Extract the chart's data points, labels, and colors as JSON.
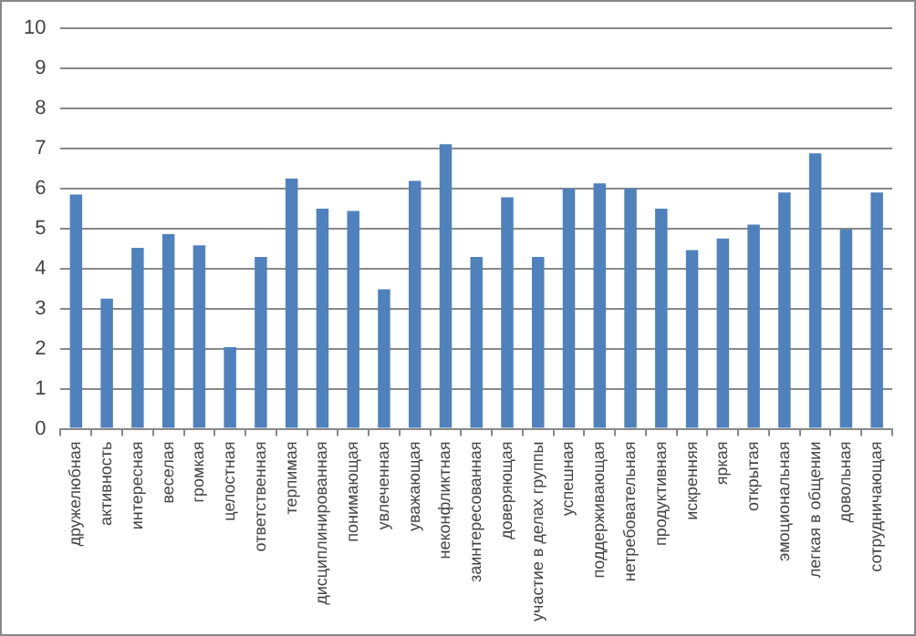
{
  "chart_data": {
    "type": "bar",
    "categories": [
      "дружелюбная",
      "активность",
      "интересная",
      "веселая",
      "громкая",
      "целостная",
      "ответственная",
      "терпимая",
      "дисциплинированная",
      "понимающая",
      "увлеченная",
      "уважающая",
      "неконфликтная",
      "заинтересованная",
      "доверяющая",
      "участие в делах группы",
      "успешная",
      "поддерживающая",
      "нетребовательная",
      "продуктивная",
      "искренняя",
      "яркая",
      "открытая",
      "эмоциональная",
      "легкая в общении",
      "довольная",
      "сотрудничающая"
    ],
    "values": [
      5.85,
      3.25,
      4.52,
      4.86,
      4.58,
      2.04,
      4.29,
      6.25,
      5.5,
      5.44,
      3.48,
      6.19,
      7.11,
      4.29,
      5.78,
      4.29,
      6.0,
      6.13,
      6.0,
      5.5,
      4.46,
      4.75,
      5.1,
      5.9,
      6.88,
      4.98,
      5.9
    ],
    "color": "#4f81bd",
    "ylim": [
      0,
      10
    ],
    "yticks": [
      0,
      1,
      2,
      3,
      4,
      5,
      6,
      7,
      8,
      9,
      10
    ],
    "grid": "y",
    "legend": false
  }
}
